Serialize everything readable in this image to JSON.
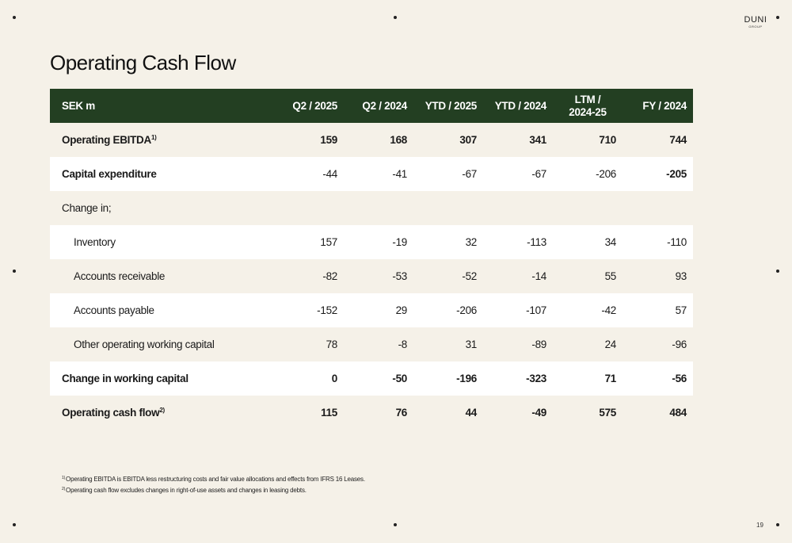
{
  "brand": {
    "logo_main": "DUNI",
    "logo_sub": "GROUP"
  },
  "page": {
    "title": "Operating Cash Flow",
    "number": "19"
  },
  "table": {
    "headers": [
      "SEK m",
      "Q2 / 2025",
      "Q2 / 2024",
      "YTD / 2025",
      "YTD / 2024",
      "LTM / 2024-25",
      "FY / 2024"
    ],
    "header_ltm_line1": "LTM /",
    "header_ltm_line2": "2024-25",
    "rows": [
      {
        "label": "Operating EBITDA",
        "sup": "1)",
        "values": [
          "159",
          "168",
          "307",
          "341",
          "710",
          "744"
        ]
      },
      {
        "label": "Capital expenditure",
        "values": [
          "-44",
          "-41",
          "-67",
          "-67",
          "-206",
          "-205"
        ]
      },
      {
        "label": "Change in;",
        "values": [
          "",
          "",
          "",
          "",
          "",
          ""
        ]
      },
      {
        "label": "Inventory",
        "values": [
          "157",
          "-19",
          "32",
          "-113",
          "34",
          "-110"
        ]
      },
      {
        "label": "Accounts receivable",
        "values": [
          "-82",
          "-53",
          "-52",
          "-14",
          "55",
          "93"
        ]
      },
      {
        "label": "Accounts payable",
        "values": [
          "-152",
          "29",
          "-206",
          "-107",
          "-42",
          "57"
        ]
      },
      {
        "label": "Other operating working capital",
        "values": [
          "78",
          "-8",
          "31",
          "-89",
          "24",
          "-96"
        ]
      },
      {
        "label": "Change in working capital",
        "values": [
          "0",
          "-50",
          "-196",
          "-323",
          "71",
          "-56"
        ]
      },
      {
        "label": "Operating cash flow",
        "sup": "2)",
        "values": [
          "115",
          "76",
          "44",
          "-49",
          "575",
          "484"
        ]
      }
    ]
  },
  "footnotes": [
    {
      "mark": "1)",
      "text": "Operating EBITDA is EBITDA less restructuring costs and fair value allocations and effects from IFRS 16 Leases."
    },
    {
      "mark": "2)",
      "text": "Operating cash flow excludes changes in right-of-use assets and changes in leasing debts."
    }
  ]
}
